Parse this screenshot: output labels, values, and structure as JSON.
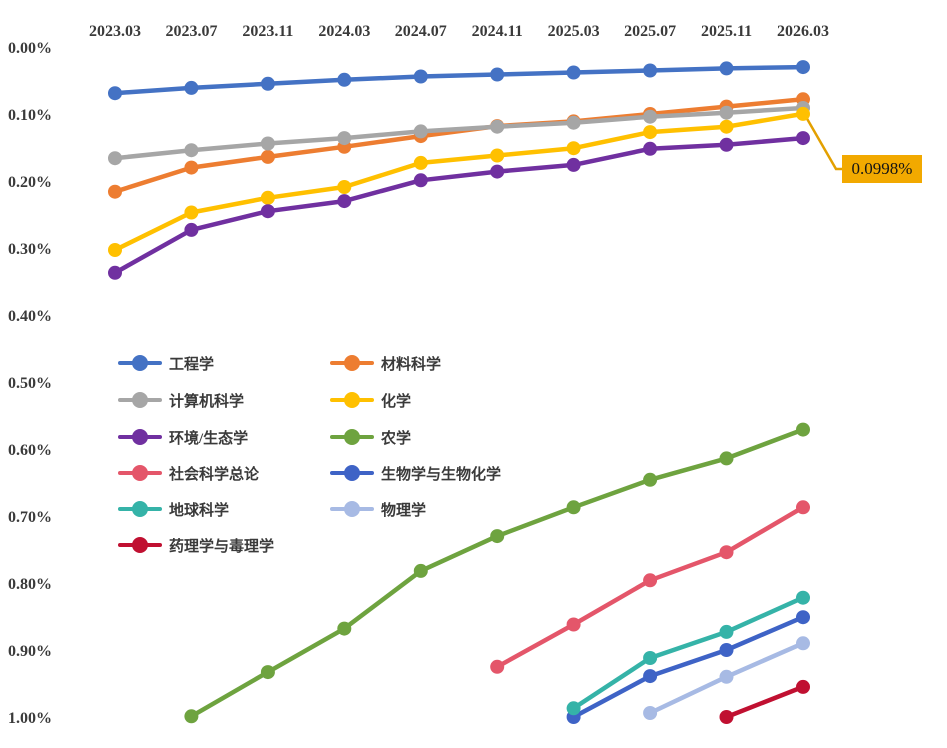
{
  "chart_data": {
    "type": "line",
    "title": "",
    "xlabel": "",
    "ylabel": "",
    "x_categories": [
      "2023.03",
      "2023.07",
      "2023.11",
      "2024.03",
      "2024.07",
      "2024.11",
      "2025.03",
      "2025.07",
      "2025.11",
      "2026.03"
    ],
    "y_axis": {
      "ticks": [
        "0.00%",
        "0.10%",
        "0.20%",
        "0.30%",
        "0.40%",
        "0.50%",
        "0.60%",
        "0.70%",
        "0.80%",
        "0.90%",
        "1.00%"
      ],
      "min": 0.0,
      "max": 1.0,
      "unit": "%",
      "inverted": true,
      "grid": false
    },
    "x_axis_position": "top",
    "legend_position": "middle-left",
    "legend_columns": 2,
    "series": [
      {
        "name": "工程学",
        "color": "#4472C4",
        "values": [
          0.069,
          0.061,
          0.055,
          0.049,
          0.044,
          0.041,
          0.038,
          0.035,
          0.032,
          0.03
        ]
      },
      {
        "name": "材料科学",
        "color": "#ED7D31",
        "values": [
          0.216,
          0.18,
          0.164,
          0.149,
          0.133,
          0.118,
          0.111,
          0.1,
          0.089,
          0.078
        ]
      },
      {
        "name": "计算机科学",
        "color": "#A6A6A6",
        "values": [
          0.166,
          0.154,
          0.144,
          0.136,
          0.126,
          0.119,
          0.113,
          0.104,
          0.098,
          0.091
        ]
      },
      {
        "name": "化学",
        "color": "#FFC000",
        "values": [
          0.303,
          0.247,
          0.225,
          0.209,
          0.173,
          0.162,
          0.151,
          0.127,
          0.119,
          0.0998
        ]
      },
      {
        "name": "环境/生态学",
        "color": "#7030A0",
        "values": [
          0.337,
          0.273,
          0.245,
          0.23,
          0.199,
          0.186,
          0.176,
          0.152,
          0.146,
          0.136
        ]
      },
      {
        "name": "农学",
        "color": "#6EA33F",
        "values": [
          null,
          0.999,
          0.933,
          0.868,
          0.782,
          0.73,
          0.687,
          0.646,
          0.614,
          0.571
        ]
      },
      {
        "name": "社会科学总论",
        "color": "#E4566A",
        "values": [
          null,
          null,
          null,
          null,
          null,
          0.925,
          0.862,
          0.796,
          0.754,
          0.687
        ]
      },
      {
        "name": "生物学与生物化学",
        "color": "#3E63C6",
        "values": [
          null,
          null,
          null,
          null,
          null,
          null,
          1.0,
          0.939,
          0.9,
          0.851
        ]
      },
      {
        "name": "地球科学",
        "color": "#35B3A8",
        "values": [
          null,
          null,
          null,
          null,
          null,
          null,
          0.987,
          0.912,
          0.873,
          0.822
        ]
      },
      {
        "name": "物理学",
        "color": "#A7BAE4",
        "values": [
          null,
          null,
          null,
          null,
          null,
          null,
          null,
          0.994,
          0.94,
          0.89
        ]
      },
      {
        "name": "药理学与毒理学",
        "color": "#C01031",
        "values": [
          null,
          null,
          null,
          null,
          null,
          null,
          null,
          null,
          1.0,
          0.955
        ]
      }
    ],
    "annotation": {
      "text": "0.0998%",
      "bg_color": "#F2A900",
      "leader_color": "#E3A000",
      "attached_series": "化学",
      "attached_x": "2026.03"
    }
  }
}
